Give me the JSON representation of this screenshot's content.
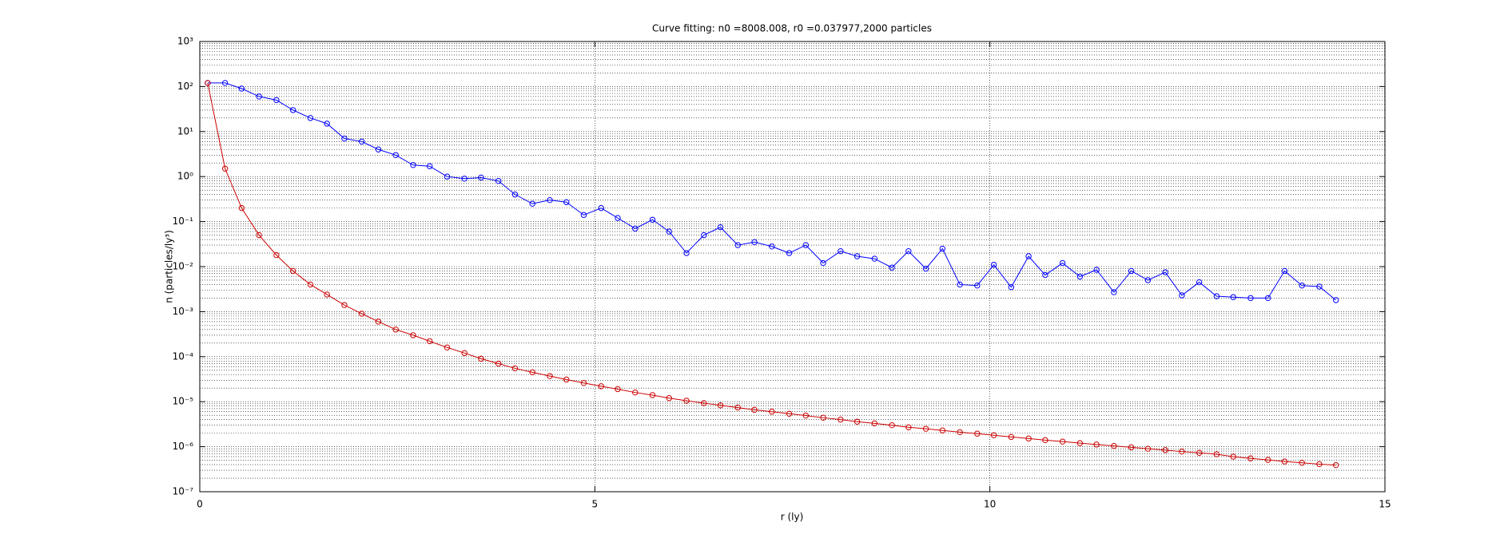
{
  "chart_data": {
    "type": "line",
    "title": "Curve fitting: n0 =8008.008, r0 =0.037977,2000 particles",
    "x_label": "r (ly)",
    "y_label": "n (particles/ly³)",
    "x": [
      0.1,
      0.32,
      0.53,
      0.75,
      0.97,
      1.18,
      1.4,
      1.61,
      1.83,
      2.05,
      2.26,
      2.48,
      2.7,
      2.91,
      3.13,
      3.35,
      3.56,
      3.78,
      3.99,
      4.21,
      4.43,
      4.64,
      4.86,
      5.08,
      5.29,
      5.51,
      5.73,
      5.94,
      6.16,
      6.38,
      6.59,
      6.81,
      7.02,
      7.24,
      7.46,
      7.67,
      7.89,
      8.11,
      8.32,
      8.54,
      8.76,
      8.97,
      9.19,
      9.4,
      9.62,
      9.84,
      10.05,
      10.27,
      10.49,
      10.7,
      10.92,
      11.14,
      11.35,
      11.57,
      11.79,
      12.0,
      12.22,
      12.43,
      12.65,
      12.87,
      13.08,
      13.3,
      13.52,
      13.73,
      13.95,
      14.17,
      14.38
    ],
    "series": [
      {
        "color": "#0000ff",
        "values": [
          120,
          120,
          90,
          60,
          50,
          30,
          20,
          15,
          7,
          6,
          4,
          3,
          1.8,
          1.7,
          1.0,
          0.9,
          0.95,
          0.8,
          0.4,
          0.25,
          0.3,
          0.27,
          0.14,
          0.2,
          0.12,
          0.07,
          0.11,
          0.06,
          0.02,
          0.05,
          0.075,
          0.03,
          0.035,
          0.028,
          0.02,
          0.03,
          0.012,
          0.022,
          0.017,
          0.015,
          0.0095,
          0.022,
          0.009,
          0.025,
          0.004,
          0.0038,
          0.011,
          0.0035,
          0.017,
          0.0065,
          0.012,
          0.006,
          0.0085,
          0.0027,
          0.008,
          0.005,
          0.0075,
          0.0023,
          0.0045,
          0.0022,
          0.0021,
          0.002,
          0.002,
          0.008,
          0.0038,
          0.0036,
          0.0018
        ]
      },
      {
        "color": "#cc0000",
        "values": [
          120,
          1.5,
          0.2,
          0.05,
          0.018,
          0.008,
          0.004,
          0.0024,
          0.0014,
          0.0009,
          0.0006,
          0.0004,
          0.0003,
          0.00022,
          0.00016,
          0.00012,
          9e-05,
          7e-05,
          5.5e-05,
          4.5e-05,
          3.7e-05,
          3.1e-05,
          2.6e-05,
          2.2e-05,
          1.9e-05,
          1.6e-05,
          1.4e-05,
          1.2e-05,
          1.05e-05,
          9.3e-06,
          8.3e-06,
          7.4e-06,
          6.6e-06,
          6e-06,
          5.4e-06,
          4.9e-06,
          4.4e-06,
          4e-06,
          3.6e-06,
          3.3e-06,
          3e-06,
          2.7e-06,
          2.5e-06,
          2.3e-06,
          2.1e-06,
          1.95e-06,
          1.8e-06,
          1.65e-06,
          1.52e-06,
          1.4e-06,
          1.3e-06,
          1.2e-06,
          1.12e-06,
          1.04e-06,
          9.7e-07,
          9e-07,
          8.4e-07,
          7.8e-07,
          7.3e-07,
          6.8e-07,
          6e-07,
          5.5e-07,
          5.1e-07,
          4.7e-07,
          4.4e-07,
          4.1e-07,
          3.9e-07
        ]
      }
    ],
    "xlim": [
      0,
      15
    ],
    "xticks": [
      0,
      5,
      10,
      15
    ],
    "ylim": [
      1e-07,
      1000
    ],
    "y_scale": "log",
    "yticks": [
      {
        "value": 1e-07,
        "label": "10⁻⁷"
      },
      {
        "value": 1e-06,
        "label": "10⁻⁶"
      },
      {
        "value": 1e-05,
        "label": "10⁻⁵"
      },
      {
        "value": 0.0001,
        "label": "10⁻⁴"
      },
      {
        "value": 0.001,
        "label": "10⁻³"
      },
      {
        "value": 0.01,
        "label": "10⁻²"
      },
      {
        "value": 0.1,
        "label": "10⁻¹"
      },
      {
        "value": 1,
        "label": "10⁰"
      },
      {
        "value": 10,
        "label": "10¹"
      },
      {
        "value": 100,
        "label": "10²"
      },
      {
        "value": 1000,
        "label": "10³"
      }
    ],
    "grid": true,
    "minor_grid": true
  }
}
